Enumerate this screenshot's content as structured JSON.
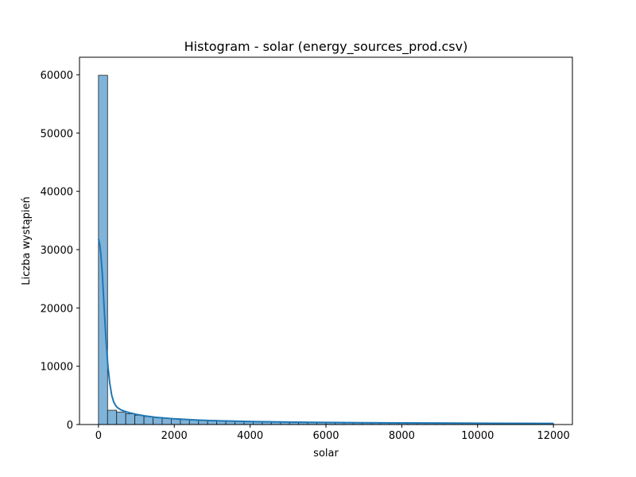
{
  "chart_data": {
    "type": "bar",
    "title": "Histogram - solar (energy_sources_prod.csv)",
    "xlabel": "solar",
    "ylabel": "Liczba wystąpień",
    "xlim": [
      -500,
      12500
    ],
    "ylim": [
      0,
      63000
    ],
    "xticks": [
      0,
      2000,
      4000,
      6000,
      8000,
      10000,
      12000
    ],
    "yticks": [
      0,
      10000,
      20000,
      30000,
      40000,
      50000,
      60000
    ],
    "bin_width": 240,
    "bin_start": 0,
    "values": [
      59900,
      2450,
      2150,
      1850,
      1600,
      1380,
      1220,
      1090,
      980,
      900,
      830,
      770,
      720,
      675,
      635,
      600,
      568,
      540,
      514,
      490,
      468,
      448,
      430,
      413,
      397,
      382,
      368,
      355,
      343,
      332,
      321,
      311,
      302,
      293,
      285,
      277,
      269,
      262,
      255,
      248,
      242,
      236,
      230,
      224,
      219,
      214,
      209,
      204,
      199,
      195
    ],
    "kde": {
      "x": [
        0,
        30,
        60,
        100,
        150,
        200,
        250,
        300,
        350,
        400,
        450,
        500,
        600,
        700,
        800,
        1000,
        1200,
        1500,
        2000,
        2500,
        3000,
        4000,
        5000,
        6000,
        7000,
        8000,
        9000,
        10000,
        11000,
        12000
      ],
      "y": [
        31800,
        31000,
        29500,
        26000,
        20000,
        14500,
        10000,
        7000,
        5000,
        3900,
        3300,
        2900,
        2500,
        2250,
        2050,
        1750,
        1500,
        1250,
        980,
        800,
        670,
        510,
        420,
        360,
        315,
        280,
        250,
        225,
        205,
        190
      ]
    },
    "bar_fill": "#7fb3d9",
    "bar_edge": "#1f1f1f",
    "kde_color": "#1f77b4",
    "grid": false
  }
}
